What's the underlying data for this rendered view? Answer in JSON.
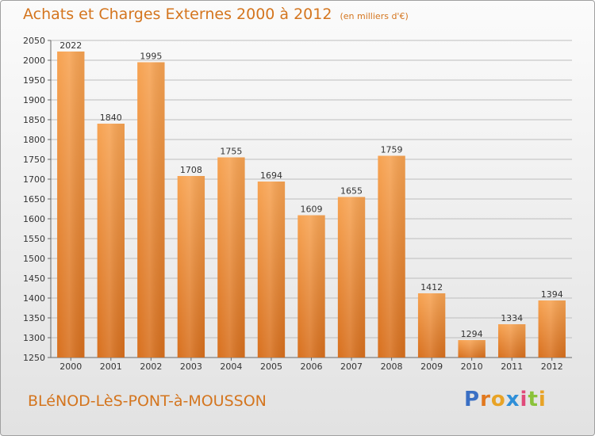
{
  "title": "Achats et Charges Externes 2000 à 2012",
  "subtitle": "(en milliers d'€)",
  "city": "BLéNOD-LèS-PONT-à-MOUSSON",
  "brand": {
    "letters": [
      "P",
      "r",
      "o",
      "x",
      "i",
      "t",
      "i"
    ],
    "colors": [
      "#3a6fc4",
      "#e1781e",
      "#e8a326",
      "#2f8fd8",
      "#e04a7a",
      "#8ac23a",
      "#e8a326"
    ]
  },
  "colors": {
    "accent": "#d4751e",
    "bar_top": "#f7a352",
    "bar_bottom": "#d8701e"
  },
  "chart_data": {
    "type": "bar",
    "title": "Achats et Charges Externes 2000 à 2012",
    "subtitle": "(en milliers d'€)",
    "categories": [
      "2000",
      "2001",
      "2002",
      "2003",
      "2004",
      "2005",
      "2006",
      "2007",
      "2008",
      "2009",
      "2010",
      "2011",
      "2012"
    ],
    "values": [
      2022,
      1840,
      1995,
      1708,
      1755,
      1694,
      1609,
      1655,
      1759,
      1412,
      1294,
      1334,
      1394
    ],
    "ylim": [
      1250,
      2050
    ],
    "yticks": [
      1250,
      1300,
      1350,
      1400,
      1450,
      1500,
      1550,
      1600,
      1650,
      1700,
      1750,
      1800,
      1850,
      1900,
      1950,
      2000,
      2050
    ],
    "grid": true,
    "xlabel": "",
    "ylabel": ""
  }
}
